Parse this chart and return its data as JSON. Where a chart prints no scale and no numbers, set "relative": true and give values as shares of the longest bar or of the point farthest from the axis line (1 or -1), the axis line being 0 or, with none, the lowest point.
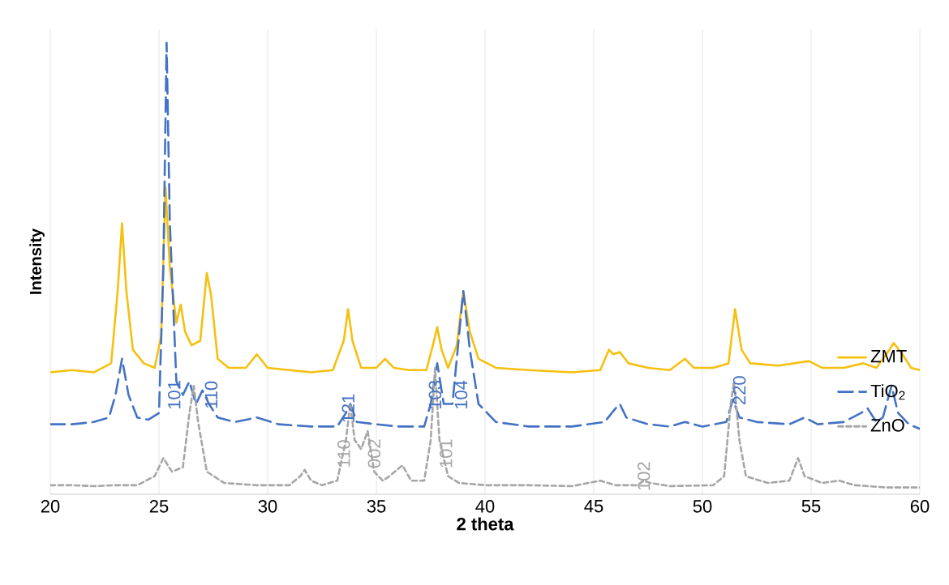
{
  "chart_data": {
    "type": "line",
    "relative": true,
    "xlabel": "2 theta",
    "ylabel": "Intensity",
    "xlim": [
      20,
      60
    ],
    "xticks": [
      20,
      25,
      30,
      35,
      40,
      45,
      50,
      55,
      60
    ],
    "grid": "x",
    "legend": "right",
    "marker": "none",
    "series": [
      {
        "name": "ZMT",
        "color": "#f5c00f",
        "line_style": "solid",
        "x": [
          20,
          21,
          22,
          22.8,
          23.1,
          23.3,
          23.5,
          23.8,
          24.3,
          24.8,
          25.1,
          25.3,
          25.5,
          25.8,
          26.0,
          26.2,
          26.5,
          26.9,
          27.2,
          27.4,
          27.7,
          28.2,
          29.0,
          29.5,
          30,
          31,
          32,
          33,
          33.5,
          33.7,
          33.9,
          34.3,
          35.0,
          35.4,
          35.8,
          36.5,
          37.3,
          37.6,
          37.8,
          38.0,
          38.3,
          38.7,
          39.0,
          39.3,
          39.7,
          40.5,
          42,
          44,
          45.3,
          45.7,
          45.9,
          46.2,
          46.6,
          47.5,
          48.5,
          49.2,
          49.6,
          50.5,
          51.2,
          51.5,
          51.8,
          52.2,
          53.5,
          54.9,
          55.5,
          56.5,
          57.4,
          58.0,
          58.6,
          58.8,
          59.2,
          59.6,
          60
        ],
        "values": [
          0.27,
          0.275,
          0.27,
          0.29,
          0.45,
          0.6,
          0.45,
          0.32,
          0.29,
          0.28,
          0.35,
          0.68,
          0.5,
          0.38,
          0.42,
          0.36,
          0.33,
          0.34,
          0.49,
          0.44,
          0.3,
          0.28,
          0.28,
          0.31,
          0.28,
          0.275,
          0.27,
          0.275,
          0.34,
          0.41,
          0.34,
          0.28,
          0.28,
          0.3,
          0.28,
          0.275,
          0.275,
          0.33,
          0.37,
          0.32,
          0.28,
          0.33,
          0.45,
          0.36,
          0.3,
          0.28,
          0.275,
          0.27,
          0.275,
          0.32,
          0.31,
          0.315,
          0.29,
          0.28,
          0.275,
          0.3,
          0.28,
          0.28,
          0.29,
          0.41,
          0.32,
          0.29,
          0.285,
          0.295,
          0.28,
          0.28,
          0.29,
          0.28,
          0.32,
          0.335,
          0.31,
          0.28,
          0.275
        ]
      },
      {
        "name": "TiO$_{2}$",
        "color": "#4472c4",
        "line_style": "dashed",
        "x": [
          20,
          21,
          22,
          22.7,
          23.0,
          23.3,
          23.6,
          24.0,
          24.5,
          25.0,
          25.2,
          25.35,
          25.5,
          25.8,
          26.1,
          26.4,
          26.7,
          27.0,
          27.3,
          27.7,
          28.5,
          29.5,
          30.5,
          32,
          33.2,
          33.6,
          33.8,
          34.1,
          35.0,
          36,
          37.2,
          37.5,
          37.8,
          38.1,
          38.5,
          38.8,
          39.0,
          39.3,
          39.7,
          40.5,
          42,
          44,
          45.5,
          46.0,
          46.2,
          46.5,
          47.5,
          48.5,
          49.2,
          50,
          51.1,
          51.4,
          51.7,
          52.5,
          54,
          54.7,
          55.3,
          56.5,
          57.3,
          57.6,
          58.0,
          58.3,
          58.7,
          59.0,
          59.5,
          60
        ],
        "values": [
          0.155,
          0.155,
          0.16,
          0.17,
          0.22,
          0.3,
          0.22,
          0.17,
          0.165,
          0.18,
          0.5,
          1.0,
          0.6,
          0.25,
          0.22,
          0.25,
          0.2,
          0.23,
          0.2,
          0.17,
          0.16,
          0.17,
          0.155,
          0.15,
          0.15,
          0.18,
          0.2,
          0.16,
          0.155,
          0.15,
          0.15,
          0.2,
          0.29,
          0.2,
          0.2,
          0.35,
          0.45,
          0.32,
          0.2,
          0.16,
          0.15,
          0.15,
          0.16,
          0.19,
          0.2,
          0.17,
          0.155,
          0.15,
          0.16,
          0.15,
          0.16,
          0.21,
          0.17,
          0.16,
          0.155,
          0.17,
          0.155,
          0.16,
          0.18,
          0.19,
          0.16,
          0.17,
          0.24,
          0.18,
          0.155,
          0.145
        ]
      },
      {
        "name": "ZnO",
        "color": "#a6a6a6",
        "line_style": "dotted",
        "x": [
          20,
          21,
          22,
          23,
          24,
          24.8,
          25.2,
          25.6,
          26.1,
          26.4,
          26.6,
          26.8,
          27.2,
          28,
          29.5,
          31,
          31.5,
          31.7,
          32,
          32.5,
          33.2,
          33.6,
          33.8,
          34.0,
          34.3,
          34.6,
          34.9,
          35.3,
          35.6,
          36.2,
          36.6,
          37.2,
          37.5,
          37.7,
          37.9,
          38.3,
          38.8,
          40,
          42,
          44,
          45.3,
          46,
          47,
          47.3,
          47.6,
          48.5,
          50.5,
          51.0,
          51.3,
          51.45,
          51.7,
          52.0,
          53,
          54,
          54.4,
          54.7,
          55.5,
          56.3,
          57,
          58.5,
          60
        ],
        "values": [
          0.02,
          0.02,
          0.018,
          0.02,
          0.02,
          0.04,
          0.08,
          0.05,
          0.06,
          0.18,
          0.24,
          0.16,
          0.05,
          0.025,
          0.02,
          0.02,
          0.04,
          0.054,
          0.03,
          0.02,
          0.03,
          0.12,
          0.2,
          0.12,
          0.1,
          0.14,
          0.05,
          0.03,
          0.04,
          0.064,
          0.03,
          0.03,
          0.12,
          0.28,
          0.12,
          0.04,
          0.025,
          0.02,
          0.02,
          0.018,
          0.03,
          0.02,
          0.02,
          0.03,
          0.025,
          0.018,
          0.02,
          0.04,
          0.2,
          0.25,
          0.12,
          0.04,
          0.025,
          0.03,
          0.08,
          0.04,
          0.025,
          0.03,
          0.02,
          0.015,
          0.015
        ]
      }
    ],
    "annotations": [
      {
        "text": "101",
        "x": 25.7,
        "y": 0.22
      },
      {
        "text": "110",
        "x": 27.4,
        "y": 0.22
      },
      {
        "text": "121",
        "x": 33.7,
        "y": 0.19
      },
      {
        "text": "103",
        "x": 37.7,
        "y": 0.22
      },
      {
        "text": "104",
        "x": 38.9,
        "y": 0.22
      },
      {
        "text": "220",
        "x": 51.7,
        "y": 0.23
      },
      {
        "text": "110",
        "x": 33.5,
        "y": 0.09
      },
      {
        "text": "002",
        "x": 34.9,
        "y": 0.09
      },
      {
        "text": "101",
        "x": 38.2,
        "y": 0.09
      },
      {
        "text": "102",
        "x": 47.3,
        "y": 0.04
      }
    ]
  }
}
